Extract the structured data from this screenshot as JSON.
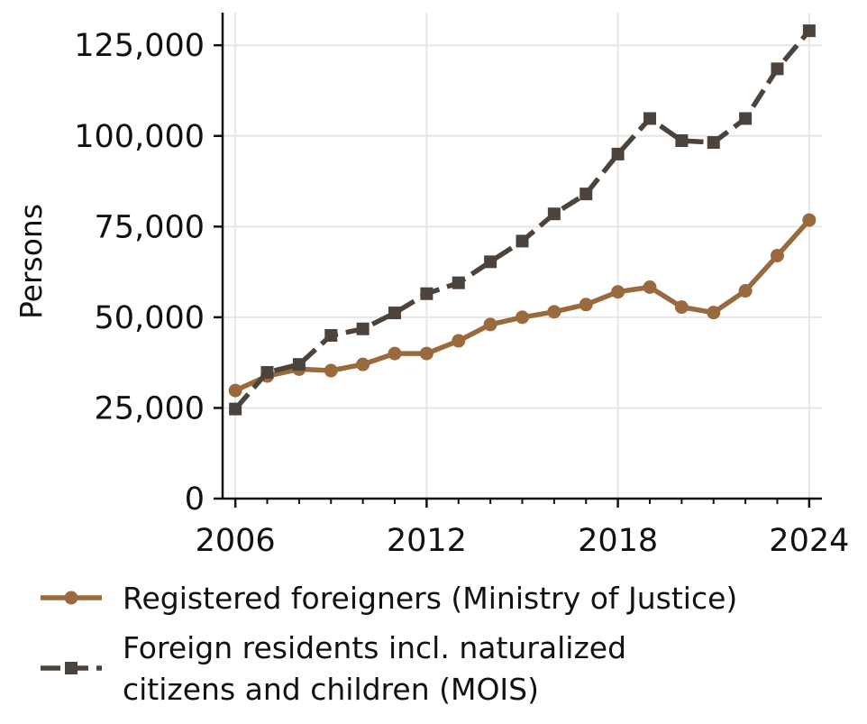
{
  "chart_data": {
    "type": "line",
    "title": "",
    "xlabel": "",
    "ylabel": "Persons",
    "xlim": [
      2005.6,
      2024.4
    ],
    "ylim": [
      0,
      134000
    ],
    "x_ticks": [
      2006,
      2012,
      2018,
      2024
    ],
    "x_tick_labels": [
      "2006",
      "2012",
      "2018",
      "2024"
    ],
    "y_ticks": [
      0,
      25000,
      50000,
      75000,
      100000,
      125000
    ],
    "y_tick_labels": [
      "0",
      "25,000",
      "50,000",
      "75,000",
      "100,000",
      "125,000"
    ],
    "grid": true,
    "legend_position": "bottom",
    "x": [
      2006,
      2007,
      2008,
      2009,
      2010,
      2011,
      2012,
      2013,
      2014,
      2015,
      2016,
      2017,
      2018,
      2019,
      2020,
      2021,
      2022,
      2023,
      2024
    ],
    "series": [
      {
        "name": "Registered foreigners (Ministry of Justice)",
        "legend_lines": [
          "Registered foreigners (Ministry of Justice)"
        ],
        "color": "#9a6a3f",
        "line_style": "solid",
        "marker": "circle",
        "values": [
          29800,
          33800,
          35700,
          35300,
          37000,
          40000,
          40000,
          43500,
          48000,
          50000,
          51500,
          53500,
          57000,
          58300,
          52800,
          51300,
          57300,
          67000,
          76800
        ]
      },
      {
        "name": "Foreign residents incl. naturalized citizens and children (MOIS)",
        "legend_lines": [
          "Foreign residents incl. naturalized",
          "citizens and children (MOIS)"
        ],
        "color": "#4b433c",
        "line_style": "dashed",
        "marker": "square",
        "values": [
          24700,
          34800,
          37000,
          45000,
          46800,
          51200,
          56500,
          59500,
          65300,
          71000,
          78500,
          84000,
          95000,
          104800,
          98700,
          98200,
          104800,
          118500,
          129000
        ]
      }
    ]
  }
}
